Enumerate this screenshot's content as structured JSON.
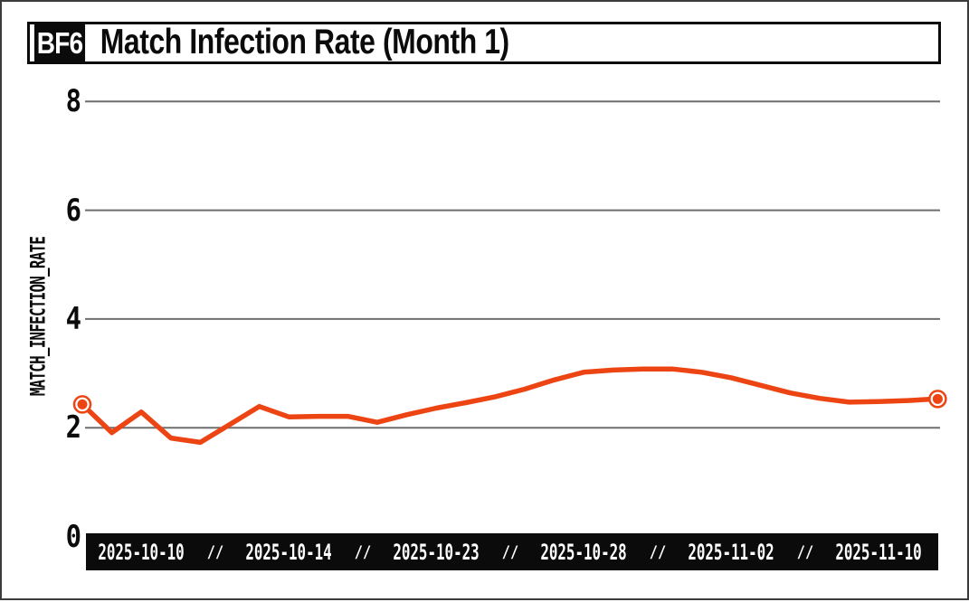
{
  "header": {
    "badge": "BF6",
    "title": "Match Infection Rate (Month 1)"
  },
  "chart_data": {
    "type": "line",
    "title": "Match Infection Rate (Month 1)",
    "badge": "BF6",
    "xlabel": "",
    "ylabel": "MATCH_INFECTION_RATE",
    "yticks": [
      0,
      2,
      4,
      6,
      8
    ],
    "ylim": [
      0,
      8.3
    ],
    "grid": "horizontal-only",
    "legend": "none",
    "line_color": "#ec4513",
    "gridline_color": "#6e6e6e",
    "axis_bar_color": "#0b0b0b",
    "tick_separator": "//",
    "x_tick_labels": [
      "2025-10-10",
      "2025-10-14",
      "2025-10-23",
      "2025-10-28",
      "2025-11-02",
      "2025-11-10"
    ],
    "tick_indices": [
      2,
      7,
      12,
      17,
      22,
      27
    ],
    "values": [
      2.43,
      1.91,
      2.29,
      1.81,
      1.73,
      2.06,
      2.39,
      2.2,
      2.21,
      2.21,
      2.1,
      2.24,
      2.36,
      2.46,
      2.57,
      2.71,
      2.88,
      3.02,
      3.06,
      3.08,
      3.08,
      3.02,
      2.92,
      2.78,
      2.64,
      2.54,
      2.47,
      2.48,
      2.5,
      2.53
    ]
  }
}
